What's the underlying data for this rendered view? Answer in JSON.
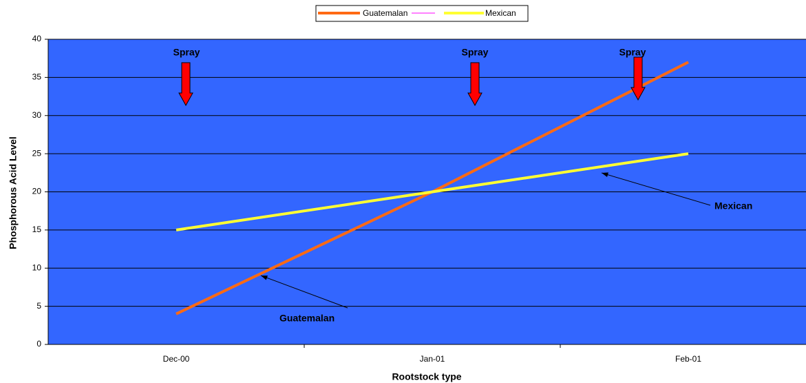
{
  "chart_data": {
    "type": "line",
    "x_label": "Rootstock type",
    "y_label": "Phosphorous Acid Level",
    "categories": [
      "Dec-00",
      "Jan-01",
      "Feb-01"
    ],
    "series": [
      {
        "name": "Guatemalan",
        "color": "#ff6a13",
        "values": [
          4,
          20,
          37
        ]
      },
      {
        "name": "Mexican",
        "color": "#ffff33",
        "values": [
          15,
          20,
          25
        ]
      }
    ],
    "ylim": [
      0,
      40
    ],
    "yticks": [
      0,
      5,
      10,
      15,
      20,
      25,
      30,
      35,
      40
    ],
    "grid": true,
    "plot_background": "#3366ff",
    "annotations": [
      "Spray",
      "Spray",
      "Spray",
      "Mexican",
      "Guatemalan"
    ]
  }
}
